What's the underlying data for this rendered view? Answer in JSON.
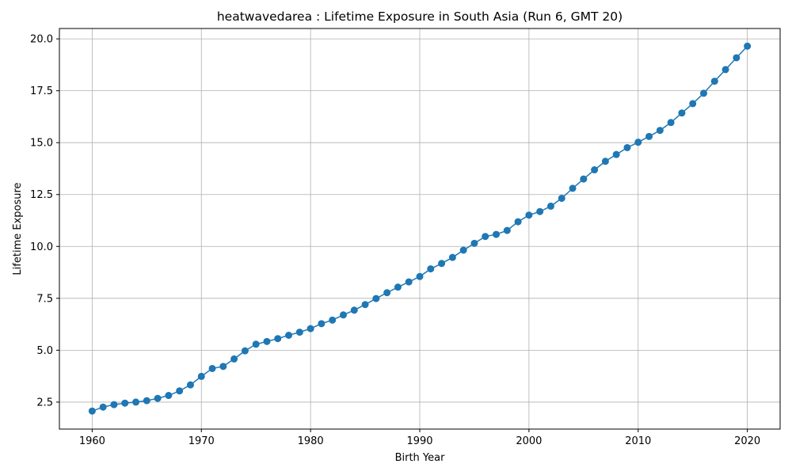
{
  "chart_data": {
    "type": "line",
    "title": "heatwavedarea : Lifetime Exposure in South Asia (Run 6, GMT 20)",
    "xlabel": "Birth Year",
    "ylabel": "Lifetime Exposure",
    "xlim": [
      1957,
      2023
    ],
    "ylim": [
      1.2,
      20.5
    ],
    "xticks": [
      1960,
      1970,
      1980,
      1990,
      2000,
      2010,
      2020
    ],
    "yticks": [
      2.5,
      5.0,
      7.5,
      10.0,
      12.5,
      15.0,
      17.5,
      20.0
    ],
    "ytick_labels": [
      "2.5",
      "5.0",
      "7.5",
      "10.0",
      "12.5",
      "15.0",
      "17.5",
      "20.0"
    ],
    "grid": true,
    "legend": "none",
    "series": [
      {
        "color": "#1f77b4",
        "marker": "circle",
        "x": [
          1960,
          1961,
          1962,
          1963,
          1964,
          1965,
          1966,
          1967,
          1968,
          1969,
          1970,
          1971,
          1972,
          1973,
          1974,
          1975,
          1976,
          1977,
          1978,
          1979,
          1980,
          1981,
          1982,
          1983,
          1984,
          1985,
          1986,
          1987,
          1988,
          1989,
          1990,
          1991,
          1992,
          1993,
          1994,
          1995,
          1996,
          1997,
          1998,
          1999,
          2000,
          2001,
          2002,
          2003,
          2004,
          2005,
          2006,
          2007,
          2008,
          2009,
          2010,
          2011,
          2012,
          2013,
          2014,
          2015,
          2016,
          2017,
          2018,
          2019,
          2020
        ],
        "values": [
          2.07,
          2.26,
          2.38,
          2.45,
          2.5,
          2.57,
          2.68,
          2.82,
          3.04,
          3.33,
          3.74,
          4.12,
          4.22,
          4.58,
          4.97,
          5.29,
          5.42,
          5.56,
          5.72,
          5.87,
          6.04,
          6.28,
          6.45,
          6.7,
          6.93,
          7.2,
          7.49,
          7.77,
          8.04,
          8.29,
          8.55,
          8.92,
          9.18,
          9.47,
          9.82,
          10.15,
          10.48,
          10.58,
          10.77,
          11.19,
          11.51,
          11.68,
          11.94,
          12.32,
          12.8,
          13.25,
          13.69,
          14.1,
          14.43,
          14.76,
          15.02,
          15.3,
          15.59,
          15.97,
          16.43,
          16.88,
          17.38,
          17.96,
          18.52,
          19.09,
          19.65
        ]
      }
    ]
  }
}
